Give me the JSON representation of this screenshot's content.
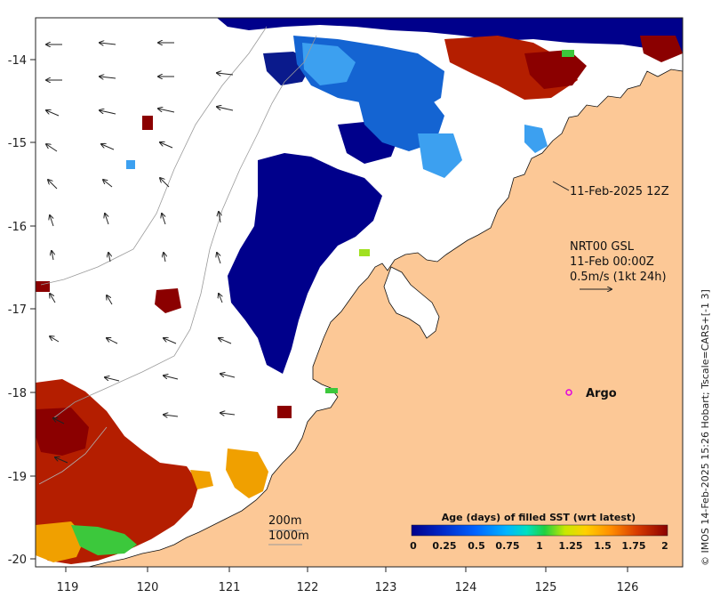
{
  "map": {
    "x_ticks": [
      "119",
      "120",
      "121",
      "122",
      "123",
      "124",
      "125",
      "126"
    ],
    "y_ticks": [
      "-14",
      "-15",
      "-16",
      "-17",
      "-18",
      "-19",
      "-20"
    ],
    "colors": {
      "land": "#fcc896",
      "ocean": "#ffffff",
      "deep_blue": "#00008b",
      "navy": "#0a1a8c",
      "mid_blue": "#1464d2",
      "light_blue": "#3ca0f0",
      "dark_red": "#8b0000",
      "red": "#b41e00",
      "orange": "#f0a000",
      "green": "#3cc83c",
      "lime": "#a0e020",
      "argo": "#e000e0"
    }
  },
  "annotations": {
    "timestamp": "11-Feb-2025 12Z",
    "product_line1": "NRT00 GSL",
    "product_line2": "11-Feb 00:00Z",
    "product_line3": "0.5m/s (1kt 24h)",
    "argo_label": "Argo",
    "isobath_200": "200m",
    "isobath_1000": "1000m",
    "credit": "© IMOS 14-Feb-2025 15:26 Hobart; Tscale=CARS+[-1 3]"
  },
  "colorbar": {
    "title": "Age (days) of filled SST (wrt latest)",
    "ticks": [
      "0",
      "0.25",
      "0.5",
      "0.75",
      "1",
      "1.25",
      "1.5",
      "1.75",
      "2"
    ],
    "stops": [
      "#00008b",
      "#0028c8",
      "#0064ff",
      "#00b4ff",
      "#00e0c0",
      "#20d040",
      "#c8e800",
      "#ffd000",
      "#ff8c00",
      "#d83c00",
      "#8b0000"
    ]
  }
}
